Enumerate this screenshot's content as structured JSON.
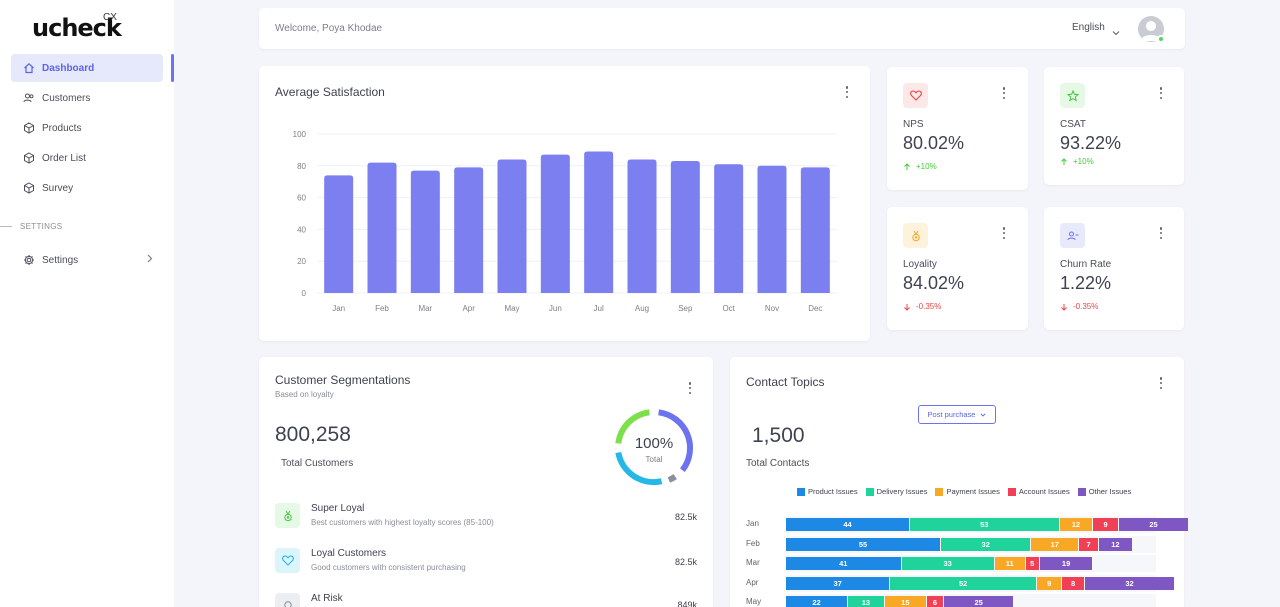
{
  "brand": {
    "logo": "ucheck",
    "logo_sup": "CX"
  },
  "sidebar": {
    "items": [
      {
        "label": "Dashboard",
        "icon": "home-icon"
      },
      {
        "label": "Customers",
        "icon": "users-icon"
      },
      {
        "label": "Products",
        "icon": "box-icon"
      },
      {
        "label": "Order List",
        "icon": "box-icon"
      },
      {
        "label": "Survey",
        "icon": "box-icon"
      }
    ],
    "section_label": "SETTINGS",
    "settings_item": {
      "label": "Settings",
      "icon": "gear-icon"
    }
  },
  "header": {
    "welcome": "Welcome, Poya Khodae",
    "language": "English"
  },
  "satisfaction": {
    "title": "Average Satisfaction",
    "chart_data": {
      "type": "bar",
      "categories": [
        "Jan",
        "Feb",
        "Mar",
        "Apr",
        "May",
        "Jun",
        "Jul",
        "Aug",
        "Sep",
        "Oct",
        "Nov",
        "Dec"
      ],
      "values": [
        74,
        82,
        77,
        79,
        84,
        87,
        89,
        84,
        83,
        81,
        80,
        79
      ],
      "ylim": [
        0,
        100
      ],
      "yticks": [
        "0",
        "20",
        "40",
        "60",
        "80",
        "100"
      ],
      "grid": true,
      "bar_color": "#7b7ff0"
    }
  },
  "kpis": {
    "nps": {
      "label": "NPS",
      "value": "80.02%",
      "delta": "+10%",
      "direction": "up",
      "icon": "heart-icon",
      "icon_bg": "#fde8e8",
      "icon_color": "#ef4444"
    },
    "csat": {
      "label": "CSAT",
      "value": "93.22%",
      "delta": "+10%",
      "direction": "up",
      "icon": "star-icon",
      "icon_bg": "#e6f9e6",
      "icon_color": "#44c93a"
    },
    "loyality": {
      "label": "Loyality",
      "value": "84.02%",
      "delta": "-0.35%",
      "direction": "down",
      "icon": "medal-icon",
      "icon_bg": "#fdf3dc",
      "icon_color": "#f5a623"
    },
    "churn": {
      "label": "Churn Rate",
      "value": "1.22%",
      "delta": "-0.35%",
      "direction": "down",
      "icon": "user-minus-icon",
      "icon_bg": "#e8e9fb",
      "icon_color": "#6d72f0"
    }
  },
  "segmentations": {
    "title": "Customer Segmentations",
    "subtitle": "Based on loyalty",
    "total": "800,258",
    "total_label": "Total Customers",
    "donut_pct": "100%",
    "donut_label": "Total",
    "rows": [
      {
        "title": "Super Loyal",
        "desc": "Best customers with highest loyalty scores (85-100)",
        "value": "82.5k",
        "icon": "medal-icon"
      },
      {
        "title": "Loyal Customers",
        "desc": "Good customers with consistent purchasing",
        "value": "82.5k",
        "icon": "heart-icon"
      },
      {
        "title": "At Risk",
        "desc": "",
        "value": "849k",
        "icon": "bulb-icon"
      }
    ]
  },
  "contact": {
    "title": "Contact Topics",
    "dropdown": "Post purchase",
    "total": "1,500",
    "total_label": "Total Contacts",
    "chart_data": {
      "type": "bar",
      "orientation": "horizontal-stacked",
      "categories": [
        "Jan",
        "Feb",
        "Mar",
        "Apr",
        "May"
      ],
      "series": [
        {
          "name": "Product Issues",
          "color": "#1e88e5",
          "values": [
            44,
            55,
            41,
            37,
            22
          ]
        },
        {
          "name": "Delivery Issues",
          "color": "#1fd39a",
          "values": [
            53,
            32,
            33,
            52,
            13
          ]
        },
        {
          "name": "Payment Issues",
          "color": "#f9a825",
          "values": [
            12,
            17,
            11,
            9,
            15
          ]
        },
        {
          "name": "Account Issues",
          "color": "#ef4056",
          "values": [
            9,
            7,
            5,
            8,
            6
          ]
        },
        {
          "name": "Other Issues",
          "color": "#7e57c2",
          "values": [
            25,
            12,
            19,
            32,
            25
          ]
        }
      ]
    }
  }
}
